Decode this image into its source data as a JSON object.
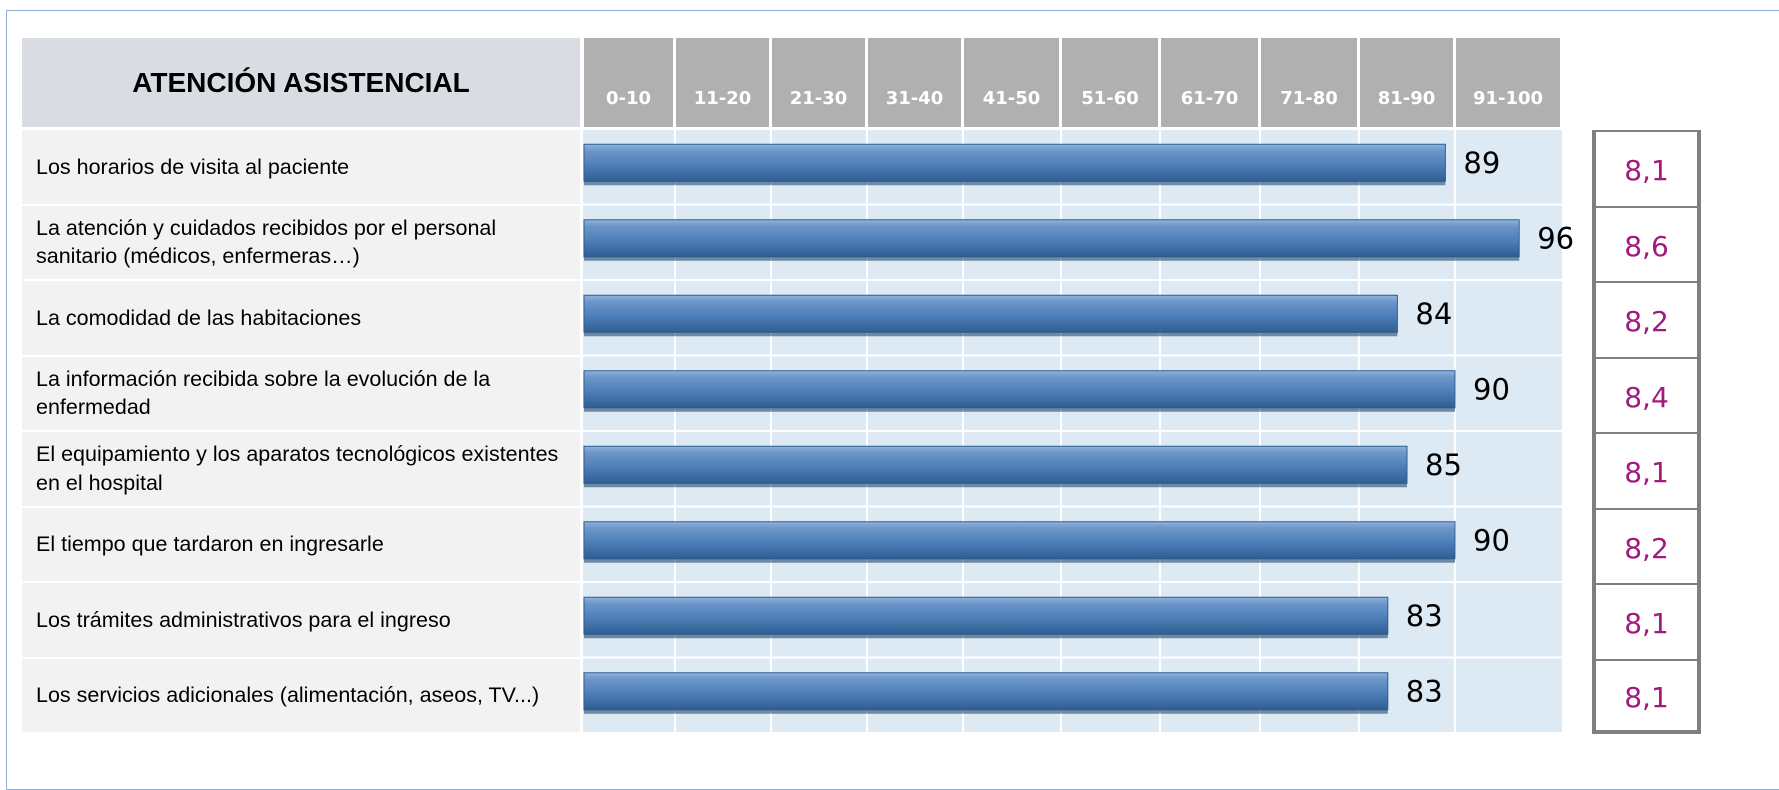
{
  "chart_data": {
    "type": "bar",
    "orientation": "horizontal",
    "title": "ATENCIÓN ASISTENCIAL",
    "column_headers": [
      "0-10",
      "11-20",
      "21-30",
      "31-40",
      "41-50",
      "51-60",
      "61-70",
      "71-80",
      "81-90",
      "91-100"
    ],
    "xlim": [
      0,
      100
    ],
    "categories": [
      "Los horarios de visita al paciente",
      "La atención y cuidados recibidos por el personal sanitario (médicos, enfermeras…)",
      "La comodidad de las habitaciones",
      "La información recibida sobre la evolución de la enfermedad",
      "El equipamiento y los aparatos tecnológicos existentes en el hospital",
      "El tiempo que tardaron en ingresarle",
      "Los trámites administrativos para el ingreso",
      "Los servicios adicionales (alimentación, aseos, TV...)"
    ],
    "values": [
      89,
      96,
      84,
      90,
      85,
      90,
      83,
      83
    ],
    "scores": [
      "8,1",
      "8,6",
      "8,2",
      "8,4",
      "8,1",
      "8,2",
      "8,1",
      "8,1"
    ],
    "grid": true,
    "colors": {
      "bar": "#4f81bd",
      "bar_dark": "#2f5f8f",
      "header_bg": "#b0b0b0",
      "title_bg": "#d9dde3",
      "plot_bg": "#dde9f3",
      "score_text": "#a3197d",
      "score_border": "#7f7f7f"
    }
  }
}
